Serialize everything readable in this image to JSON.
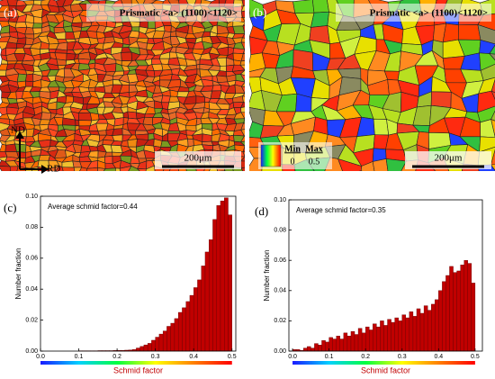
{
  "panels": [
    {
      "label": "(a)",
      "title": "Prismatic <a> (1100)<1120>",
      "scale_bar": "200μm",
      "axes": {
        "y": "ND",
        "x": "RD"
      }
    },
    {
      "label": "(b)",
      "title": "Prismatic <a> (1100)<1120>",
      "scale_bar": "200μm",
      "legend": {
        "min_label": "Min",
        "max_label": "Max",
        "min": 0,
        "max": 0.5
      }
    }
  ],
  "chart_data": [
    {
      "type": "histogram",
      "label": "(c)",
      "annotation": "Average schmid factor=0.44",
      "xlabel": "Schmid factor",
      "ylabel": "Number fraction",
      "color": "#c00000",
      "bins": [
        0,
        0.01,
        0.02,
        0.03,
        0.04,
        0.05,
        0.06,
        0.07,
        0.08,
        0.09,
        0.1,
        0.11,
        0.12,
        0.13,
        0.14,
        0.15,
        0.16,
        0.17,
        0.18,
        0.19,
        0.2,
        0.21,
        0.22,
        0.23,
        0.24,
        0.25,
        0.26,
        0.27,
        0.28,
        0.29,
        0.3,
        0.31,
        0.32,
        0.33,
        0.34,
        0.35,
        0.36,
        0.37,
        0.38,
        0.39,
        0.4,
        0.41,
        0.42,
        0.43,
        0.44,
        0.45,
        0.46,
        0.47,
        0.48,
        0.49,
        0.5
      ],
      "values": [
        0,
        0,
        0,
        0,
        0,
        0,
        0,
        0,
        0,
        0,
        0.0002,
        0.0002,
        0.0002,
        0.0002,
        0.0002,
        0.0003,
        0.0003,
        0.0003,
        0.0003,
        0.0004,
        0.0005,
        0.0005,
        0.0006,
        0.0007,
        0.001,
        0.002,
        0.003,
        0.004,
        0.005,
        0.007,
        0.009,
        0.011,
        0.013,
        0.016,
        0.018,
        0.021,
        0.025,
        0.028,
        0.032,
        0.036,
        0.041,
        0.046,
        0.055,
        0.064,
        0.072,
        0.085,
        0.094,
        0.097,
        0.099,
        0.088
      ],
      "xlim": [
        0,
        0.51
      ],
      "ylim": [
        0,
        0.1
      ],
      "xticks": [
        {
          "value": 0,
          "label": "0.0"
        },
        0.1,
        0.2,
        0.3,
        0.4,
        0.5
      ],
      "yticks": [
        {
          "value": 0,
          "label": "0.00"
        },
        0.02,
        0.04,
        0.06,
        0.08,
        {
          "value": 0.1,
          "label": "0.10"
        }
      ]
    },
    {
      "type": "histogram",
      "label": "(d)",
      "annotation": "Average schmid factor=0.35",
      "xlabel": "Schmid factor",
      "ylabel": "Number fraction",
      "color": "#c00000",
      "bins": [
        0,
        0.01,
        0.02,
        0.03,
        0.04,
        0.05,
        0.06,
        0.07,
        0.08,
        0.09,
        0.1,
        0.11,
        0.12,
        0.13,
        0.14,
        0.15,
        0.16,
        0.17,
        0.18,
        0.19,
        0.2,
        0.21,
        0.22,
        0.23,
        0.24,
        0.25,
        0.26,
        0.27,
        0.28,
        0.29,
        0.3,
        0.31,
        0.32,
        0.33,
        0.34,
        0.35,
        0.36,
        0.37,
        0.38,
        0.39,
        0.4,
        0.41,
        0.42,
        0.43,
        0.44,
        0.45,
        0.46,
        0.47,
        0.48,
        0.49,
        0.5
      ],
      "values": [
        0.001,
        0.001,
        0.0005,
        0.002,
        0.003,
        0.002,
        0.005,
        0.004,
        0.007,
        0.006,
        0.009,
        0.008,
        0.01,
        0.008,
        0.012,
        0.01,
        0.013,
        0.011,
        0.015,
        0.012,
        0.016,
        0.014,
        0.018,
        0.016,
        0.02,
        0.017,
        0.021,
        0.019,
        0.022,
        0.02,
        0.024,
        0.022,
        0.026,
        0.023,
        0.028,
        0.025,
        0.03,
        0.027,
        0.031,
        0.034,
        0.04,
        0.046,
        0.05,
        0.056,
        0.052,
        0.053,
        0.057,
        0.06,
        0.058,
        0.045
      ],
      "xlim": [
        -0.01,
        0.52
      ],
      "ylim": [
        0,
        0.1
      ],
      "xticks": [
        {
          "value": 0,
          "label": "0.0"
        },
        0.1,
        0.2,
        0.3,
        0.4,
        0.5
      ],
      "yticks": [
        {
          "value": 0,
          "label": "0.00"
        },
        0.02,
        0.04,
        0.06,
        0.08,
        {
          "value": 0.1,
          "label": "0.10"
        }
      ]
    }
  ]
}
